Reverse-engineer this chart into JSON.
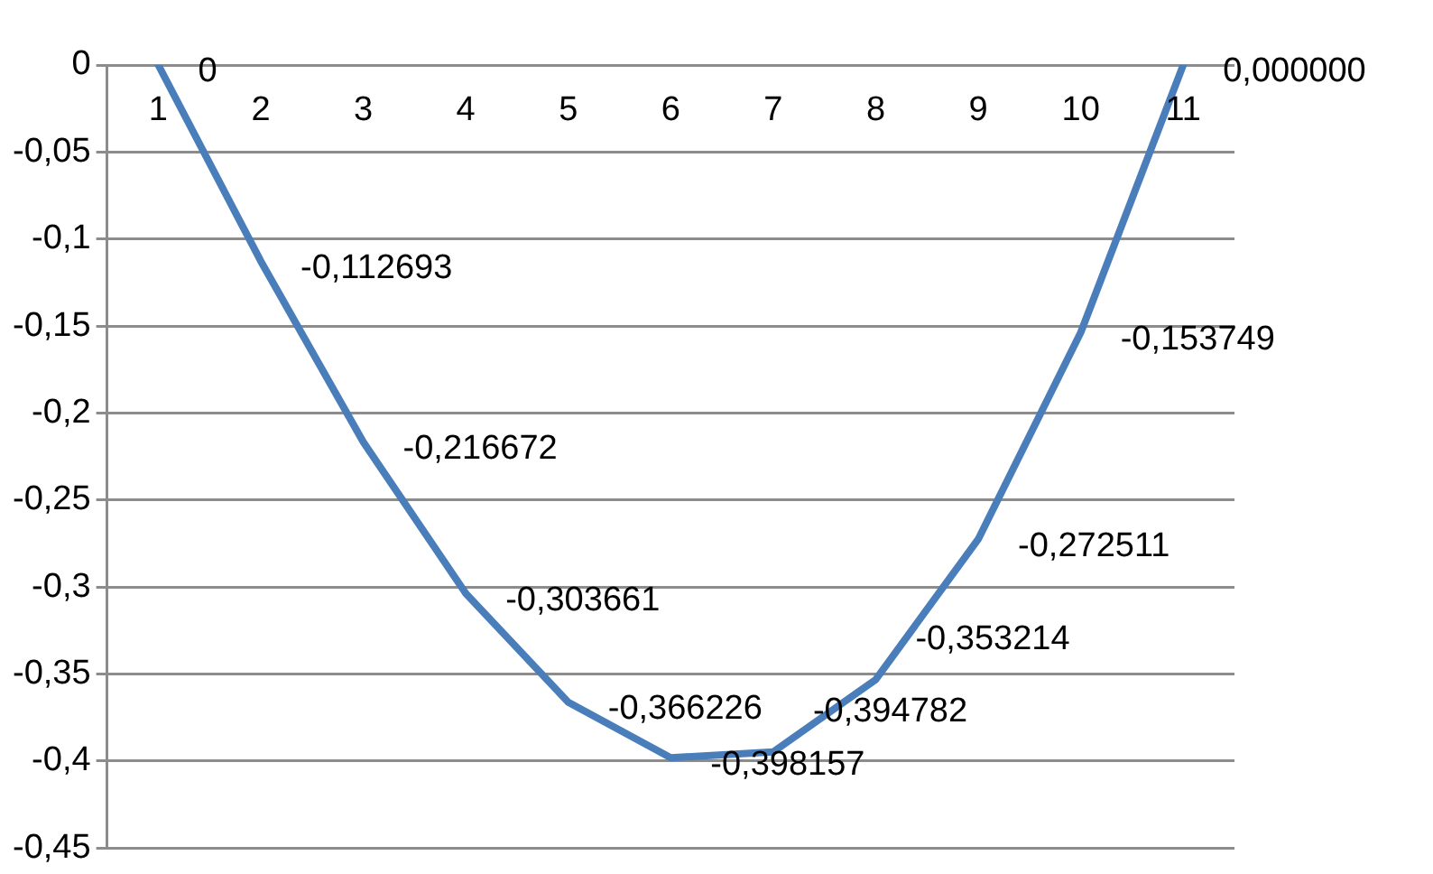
{
  "chart_data": {
    "type": "line",
    "categories": [
      "1",
      "2",
      "3",
      "4",
      "5",
      "6",
      "7",
      "8",
      "9",
      "10",
      "11"
    ],
    "series": [
      {
        "color": "#4a7ebb",
        "values": [
          0,
          -0.112693,
          -0.216672,
          -0.303661,
          -0.366226,
          -0.398157,
          -0.394782,
          -0.353214,
          -0.272511,
          -0.153749,
          0
        ]
      }
    ],
    "value_labels": [
      "0",
      "-0,112693",
      "-0,216672",
      "-0,303661",
      "-0,366226",
      "-0,398157",
      "-0,394782",
      "-0,353214",
      "-0,272511",
      "-0,153749",
      "0,000000"
    ],
    "ylim": [
      -0.45,
      0
    ],
    "yticks": [
      {
        "value": 0,
        "label": "0"
      },
      {
        "value": -0.05,
        "label": "-0,05"
      },
      {
        "value": -0.1,
        "label": "-0,1"
      },
      {
        "value": -0.15,
        "label": "-0,15"
      },
      {
        "value": -0.2,
        "label": "-0,2"
      },
      {
        "value": -0.25,
        "label": "-0,25"
      },
      {
        "value": -0.3,
        "label": "-0,3"
      },
      {
        "value": -0.35,
        "label": "-0,35"
      },
      {
        "value": -0.4,
        "label": "-0,4"
      },
      {
        "value": -0.45,
        "label": "-0,45"
      }
    ],
    "grid": "y",
    "legend": false,
    "marker": "none",
    "line_style": "solid"
  }
}
